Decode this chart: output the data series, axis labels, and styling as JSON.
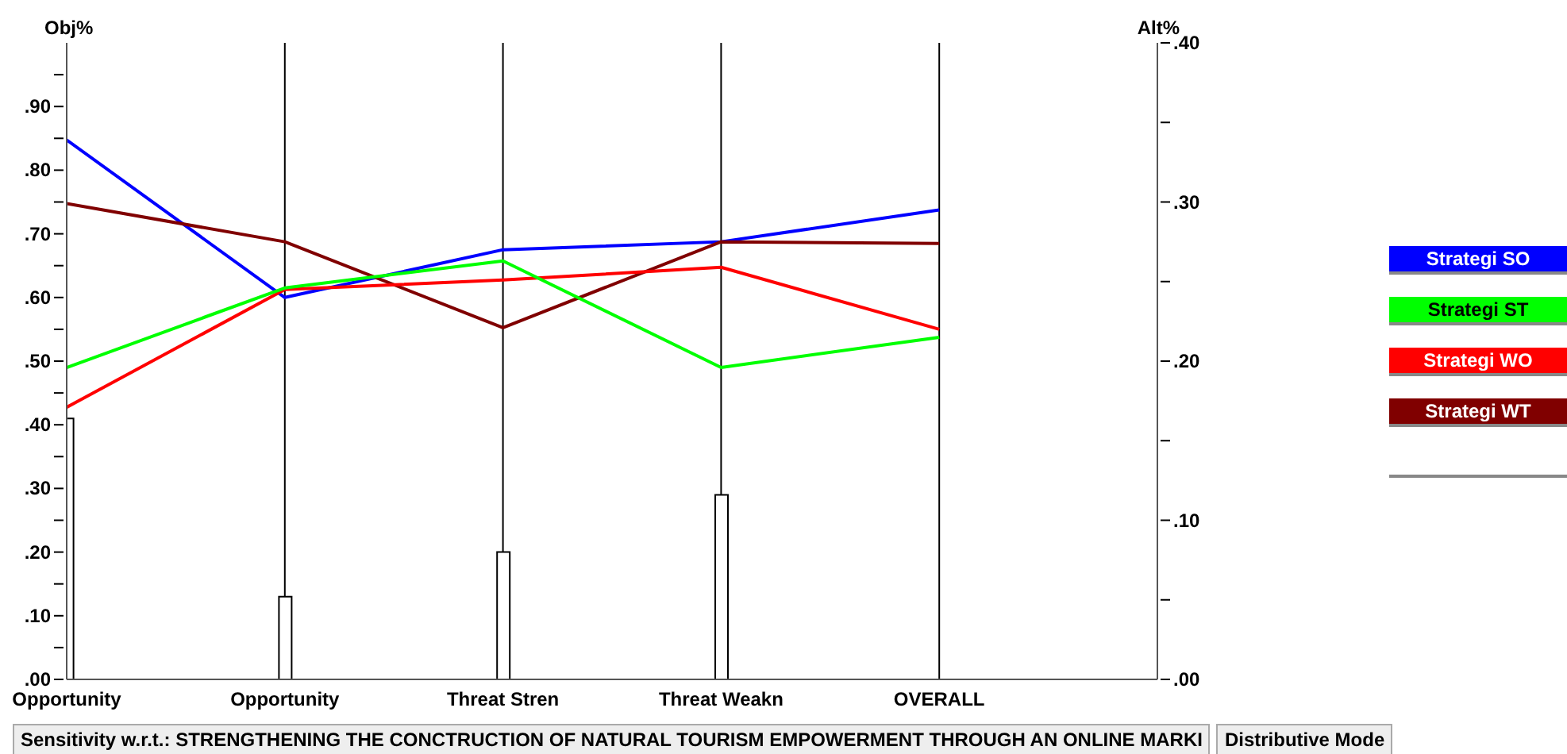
{
  "chart_data": {
    "type": "line",
    "title": "Sensitivity w.r.t.: STRENGTHENING THE CONCTRUCTION OF NATURAL TOURISM EMPOWERMENT THROUGH AN ONLINE MARKI",
    "annotations": [
      "Distributive Mode"
    ],
    "ylabel": "Obj%",
    "y2label": "Alt%",
    "categories": [
      "Opportunity",
      "Opportunity",
      "Threat Stren",
      "Threat Weakn",
      "OVERALL"
    ],
    "series": [
      {
        "type": "bar",
        "color": "#ffffff",
        "values": [
          0.41,
          0.13,
          0.2,
          0.29,
          null
        ]
      },
      {
        "name": "Strategi SO",
        "color": "#0000ff",
        "axis": "y2",
        "values": [
          0.339,
          0.24,
          0.27,
          0.275,
          0.295
        ]
      },
      {
        "name": "Strategi WT",
        "color": "#800000",
        "axis": "y2",
        "values": [
          0.299,
          0.275,
          0.221,
          0.275,
          0.274
        ]
      },
      {
        "name": "Strategi WO",
        "color": "#ff0000",
        "axis": "y2",
        "values": [
          0.171,
          0.245,
          0.251,
          0.259,
          0.22
        ]
      },
      {
        "name": "Strategi ST",
        "color": "#00ff00",
        "axis": "y2",
        "values": [
          0.196,
          0.246,
          0.263,
          0.196,
          0.215
        ]
      }
    ],
    "ylim": [
      0,
      1
    ],
    "yticks": [
      {
        "value": 0,
        "label": ".00"
      },
      {
        "value": 0.05,
        "label": null
      },
      {
        "value": 0.1,
        "label": ".10"
      },
      {
        "value": 0.15,
        "label": null
      },
      {
        "value": 0.2,
        "label": ".20"
      },
      {
        "value": 0.25,
        "label": null
      },
      {
        "value": 0.3,
        "label": ".30"
      },
      {
        "value": 0.35,
        "label": null
      },
      {
        "value": 0.4,
        "label": ".40"
      },
      {
        "value": 0.45,
        "label": null
      },
      {
        "value": 0.5,
        "label": ".50"
      },
      {
        "value": 0.55,
        "label": null
      },
      {
        "value": 0.6,
        "label": ".60"
      },
      {
        "value": 0.65,
        "label": null
      },
      {
        "value": 0.7,
        "label": ".70"
      },
      {
        "value": 0.75,
        "label": null
      },
      {
        "value": 0.8,
        "label": ".80"
      },
      {
        "value": 0.85,
        "label": null
      },
      {
        "value": 0.9,
        "label": ".90"
      },
      {
        "value": 0.95,
        "label": null
      }
    ],
    "y2lim": [
      0,
      0.4
    ],
    "y2ticks": [
      {
        "value": 0,
        "label": ".00"
      },
      {
        "value": 0.05,
        "label": null
      },
      {
        "value": 0.1,
        "label": ".10"
      },
      {
        "value": 0.15,
        "label": null
      },
      {
        "value": 0.2,
        "label": ".20"
      },
      {
        "value": 0.25,
        "label": null
      },
      {
        "value": 0.3,
        "label": ".30"
      },
      {
        "value": 0.35,
        "label": null
      },
      {
        "value": 0.4,
        "label": ".40"
      }
    ],
    "grid": "x",
    "legend": "right",
    "marker": "none",
    "line_style": "solid"
  }
}
